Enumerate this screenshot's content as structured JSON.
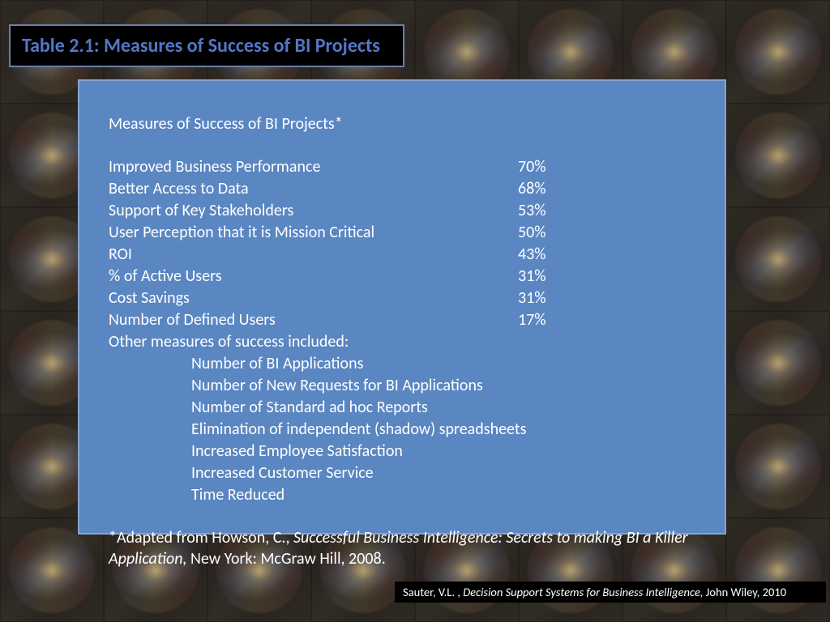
{
  "title": "Table 2.1:   Measures of Success of BI Projects",
  "content": {
    "heading": "Measures of Success of BI Projects*",
    "measures": [
      {
        "label": "Improved Business Performance",
        "value": "70%"
      },
      {
        "label": "Better Access to Data",
        "value": "68%"
      },
      {
        "label": "Support of Key Stakeholders",
        "value": "53%"
      },
      {
        "label": "User Perception that it is Mission Critical",
        "value": "50%"
      },
      {
        "label": "ROI",
        "value": "43%"
      },
      {
        "label": "% of Active Users",
        "value": "31%"
      },
      {
        "label": "Cost Savings",
        "value": "31%"
      },
      {
        "label": "Number of Defined Users",
        "value": "17%"
      }
    ],
    "other_heading": "Other measures of success included:",
    "other_items": [
      "Number of BI Applications",
      "Number of New Requests for BI Applications",
      "Number of Standard ad hoc Reports",
      "Elimination of independent (shadow) spreadsheets",
      "Increased Employee Satisfaction",
      "Increased Customer Service",
      "Time Reduced"
    ],
    "footnote": {
      "prefix": "*Adapted from Howson, C., ",
      "italic": "Successful Business Intelligence: Secrets to making BI a Killer Application, ",
      "suffix": "New York: McGraw Hill, 2008."
    }
  },
  "citation": {
    "prefix": "Sauter, V.L. , ",
    "italic": "Decision Support Systems for Business Intelligence, ",
    "suffix": "John Wiley, 2010"
  },
  "colors": {
    "title_bg": "#000000",
    "title_border": "#6a7fa8",
    "title_text": "#5576c7",
    "box_bg": "#5a86c2",
    "box_border": "#8aa4cc",
    "box_text": "#ffffff",
    "cite_bg": "#000000",
    "cite_text": "#ffffff"
  }
}
